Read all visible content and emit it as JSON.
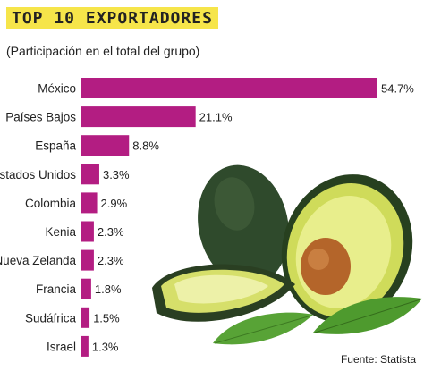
{
  "title": "TOP 10 EXPORTADORES",
  "subtitle": "(Participación en el total del grupo)",
  "source": "Fuente: Statista",
  "colors": {
    "bar": "#b31d82",
    "title_highlight": "#f6e54a",
    "avocado_skin": "#2e4a2a",
    "avocado_flesh": "#e4ea7a",
    "avocado_seed": "#b86a2c",
    "leaf": "#5fa83a"
  },
  "chart_data": {
    "type": "bar",
    "orientation": "horizontal",
    "categories": [
      "México",
      "Países Bajos",
      "España",
      "Estados Unidos",
      "Colombia",
      "Kenia",
      "Nueva Zelanda",
      "Francia",
      "Sudáfrica",
      "Israel"
    ],
    "values": [
      54.7,
      21.1,
      8.8,
      3.3,
      2.9,
      2.3,
      2.3,
      1.8,
      1.5,
      1.3
    ],
    "value_labels": [
      "54.7%",
      "21.1%",
      "8.8%",
      "3.3%",
      "2.9%",
      "2.3%",
      "2.3%",
      "1.8%",
      "1.5%",
      "1.3%"
    ],
    "xlim": [
      0,
      54.7
    ],
    "grid": false,
    "legend": "none"
  }
}
